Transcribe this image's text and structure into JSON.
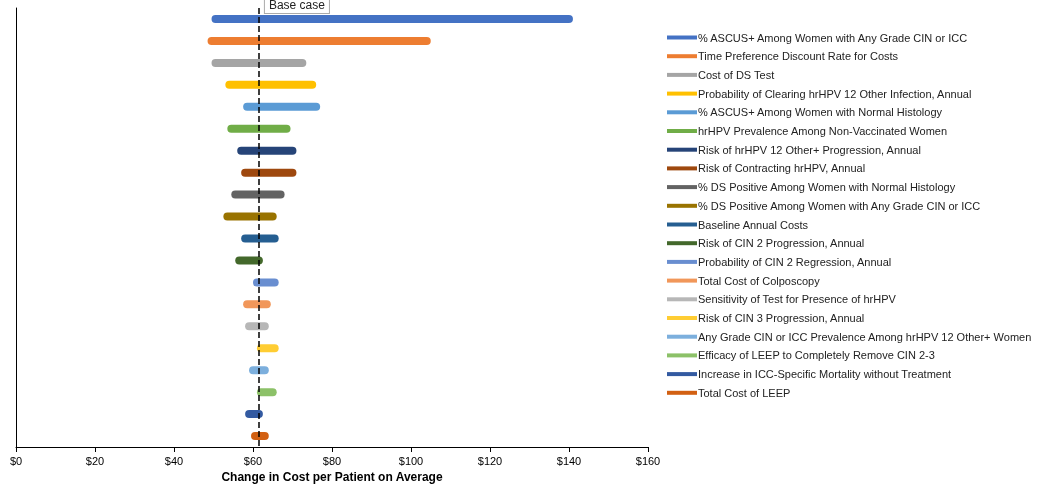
{
  "chart_data": {
    "type": "bar",
    "orientation": "horizontal",
    "xlabel": "Change in Cost per Patient on Average",
    "categories": [
      null,
      null,
      null,
      null,
      null,
      null,
      null,
      null,
      null,
      null,
      null,
      null,
      null,
      null,
      null,
      null,
      null,
      null,
      null,
      null
    ],
    "xlim": [
      0,
      160
    ],
    "xticks": [
      {
        "value": 0,
        "label": "$0"
      },
      {
        "value": 20,
        "label": "$20"
      },
      {
        "value": 40,
        "label": "$40"
      },
      {
        "value": 60,
        "label": "$60"
      },
      {
        "value": 80,
        "label": "$80"
      },
      {
        "value": 100,
        "label": "$100"
      },
      {
        "value": 120,
        "label": "$120"
      },
      {
        "value": 140,
        "label": "$140"
      },
      {
        "value": 160,
        "label": "$160"
      }
    ],
    "tick_labels": "x",
    "grid": false,
    "legend": "right",
    "ref_lines": [
      {
        "axis": "x",
        "value": 61.5,
        "label": "Base case",
        "color": "#000000",
        "line_style": "dashed"
      }
    ],
    "series": [
      {
        "name": "% ASCUS+ Among Women with Any Grade CIN or ICC",
        "color": "#4472c4",
        "base": [
          49.5,
          null,
          null,
          null,
          null,
          null,
          null,
          null,
          null,
          null,
          null,
          null,
          null,
          null,
          null,
          null,
          null,
          null,
          null,
          null
        ],
        "values": [
          91.5,
          null,
          null,
          null,
          null,
          null,
          null,
          null,
          null,
          null,
          null,
          null,
          null,
          null,
          null,
          null,
          null,
          null,
          null,
          null
        ]
      },
      {
        "name": "Time Preference Discount Rate for Costs",
        "color": "#ed7d31",
        "base": [
          null,
          48.5,
          null,
          null,
          null,
          null,
          null,
          null,
          null,
          null,
          null,
          null,
          null,
          null,
          null,
          null,
          null,
          null,
          null,
          null
        ],
        "values": [
          null,
          56.5,
          null,
          null,
          null,
          null,
          null,
          null,
          null,
          null,
          null,
          null,
          null,
          null,
          null,
          null,
          null,
          null,
          null,
          null
        ]
      },
      {
        "name": "Cost of DS Test",
        "color": "#a5a5a5",
        "base": [
          null,
          null,
          49.5,
          null,
          null,
          null,
          null,
          null,
          null,
          null,
          null,
          null,
          null,
          null,
          null,
          null,
          null,
          null,
          null,
          null
        ],
        "values": [
          null,
          null,
          24,
          null,
          null,
          null,
          null,
          null,
          null,
          null,
          null,
          null,
          null,
          null,
          null,
          null,
          null,
          null,
          null,
          null
        ]
      },
      {
        "name": "Probability of Clearing hrHPV 12 Other Infection, Annual",
        "color": "#ffc000",
        "base": [
          null,
          null,
          null,
          53,
          null,
          null,
          null,
          null,
          null,
          null,
          null,
          null,
          null,
          null,
          null,
          null,
          null,
          null,
          null,
          null
        ],
        "values": [
          null,
          null,
          null,
          23,
          null,
          null,
          null,
          null,
          null,
          null,
          null,
          null,
          null,
          null,
          null,
          null,
          null,
          null,
          null,
          null
        ]
      },
      {
        "name": "% ASCUS+ Among Women with Normal Histology",
        "color": "#5b9bd5",
        "base": [
          null,
          null,
          null,
          null,
          57.5,
          null,
          null,
          null,
          null,
          null,
          null,
          null,
          null,
          null,
          null,
          null,
          null,
          null,
          null,
          null
        ],
        "values": [
          null,
          null,
          null,
          null,
          19.5,
          null,
          null,
          null,
          null,
          null,
          null,
          null,
          null,
          null,
          null,
          null,
          null,
          null,
          null,
          null
        ]
      },
      {
        "name": "hrHPV Prevalence Among Non-Vaccinated Women",
        "color": "#70ad47",
        "base": [
          null,
          null,
          null,
          null,
          null,
          53.5,
          null,
          null,
          null,
          null,
          null,
          null,
          null,
          null,
          null,
          null,
          null,
          null,
          null,
          null
        ],
        "values": [
          null,
          null,
          null,
          null,
          null,
          16,
          null,
          null,
          null,
          null,
          null,
          null,
          null,
          null,
          null,
          null,
          null,
          null,
          null,
          null
        ]
      },
      {
        "name": "Risk of hrHPV 12 Other+ Progression, Annual",
        "color": "#264478",
        "base": [
          null,
          null,
          null,
          null,
          null,
          null,
          56,
          null,
          null,
          null,
          null,
          null,
          null,
          null,
          null,
          null,
          null,
          null,
          null,
          null
        ],
        "values": [
          null,
          null,
          null,
          null,
          null,
          null,
          15,
          null,
          null,
          null,
          null,
          null,
          null,
          null,
          null,
          null,
          null,
          null,
          null,
          null
        ]
      },
      {
        "name": "Risk of Contracting hrHPV, Annual",
        "color": "#9e480e",
        "base": [
          null,
          null,
          null,
          null,
          null,
          null,
          null,
          57,
          null,
          null,
          null,
          null,
          null,
          null,
          null,
          null,
          null,
          null,
          null,
          null
        ],
        "values": [
          null,
          null,
          null,
          null,
          null,
          null,
          null,
          14,
          null,
          null,
          null,
          null,
          null,
          null,
          null,
          null,
          null,
          null,
          null,
          null
        ]
      },
      {
        "name": "% DS Positive Among Women with Normal Histology",
        "color": "#636363",
        "base": [
          null,
          null,
          null,
          null,
          null,
          null,
          null,
          null,
          54.5,
          null,
          null,
          null,
          null,
          null,
          null,
          null,
          null,
          null,
          null,
          null
        ],
        "values": [
          null,
          null,
          null,
          null,
          null,
          null,
          null,
          null,
          13.5,
          null,
          null,
          null,
          null,
          null,
          null,
          null,
          null,
          null,
          null,
          null
        ]
      },
      {
        "name": "% DS Positive Among Women with Any Grade CIN or ICC",
        "color": "#997300",
        "base": [
          null,
          null,
          null,
          null,
          null,
          null,
          null,
          null,
          null,
          52.5,
          null,
          null,
          null,
          null,
          null,
          null,
          null,
          null,
          null,
          null
        ],
        "values": [
          null,
          null,
          null,
          null,
          null,
          null,
          null,
          null,
          null,
          13.5,
          null,
          null,
          null,
          null,
          null,
          null,
          null,
          null,
          null,
          null
        ]
      },
      {
        "name": "Baseline Annual Costs",
        "color": "#255e91",
        "base": [
          null,
          null,
          null,
          null,
          null,
          null,
          null,
          null,
          null,
          null,
          57,
          null,
          null,
          null,
          null,
          null,
          null,
          null,
          null,
          null
        ],
        "values": [
          null,
          null,
          null,
          null,
          null,
          null,
          null,
          null,
          null,
          null,
          9.5,
          null,
          null,
          null,
          null,
          null,
          null,
          null,
          null,
          null
        ]
      },
      {
        "name": "Risk of CIN 2 Progression, Annual",
        "color": "#43682b",
        "base": [
          null,
          null,
          null,
          null,
          null,
          null,
          null,
          null,
          null,
          null,
          null,
          55.5,
          null,
          null,
          null,
          null,
          null,
          null,
          null,
          null
        ],
        "values": [
          null,
          null,
          null,
          null,
          null,
          null,
          null,
          null,
          null,
          null,
          null,
          7,
          null,
          null,
          null,
          null,
          null,
          null,
          null,
          null
        ]
      },
      {
        "name": "Probability of CIN 2 Regression, Annual",
        "color": "#698ed0",
        "base": [
          null,
          null,
          null,
          null,
          null,
          null,
          null,
          null,
          null,
          null,
          null,
          null,
          60,
          null,
          null,
          null,
          null,
          null,
          null,
          null
        ],
        "values": [
          null,
          null,
          null,
          null,
          null,
          null,
          null,
          null,
          null,
          null,
          null,
          null,
          6.5,
          null,
          null,
          null,
          null,
          null,
          null,
          null
        ]
      },
      {
        "name": "Total Cost of Colposcopy",
        "color": "#f1975a",
        "base": [
          null,
          null,
          null,
          null,
          null,
          null,
          null,
          null,
          null,
          null,
          null,
          null,
          null,
          57.5,
          null,
          null,
          null,
          null,
          null,
          null
        ],
        "values": [
          null,
          null,
          null,
          null,
          null,
          null,
          null,
          null,
          null,
          null,
          null,
          null,
          null,
          7,
          null,
          null,
          null,
          null,
          null,
          null
        ]
      },
      {
        "name": "Sensitivity of Test for Presence of hrHPV",
        "color": "#b7b7b7",
        "base": [
          null,
          null,
          null,
          null,
          null,
          null,
          null,
          null,
          null,
          null,
          null,
          null,
          null,
          null,
          58,
          null,
          null,
          null,
          null,
          null
        ],
        "values": [
          null,
          null,
          null,
          null,
          null,
          null,
          null,
          null,
          null,
          null,
          null,
          null,
          null,
          null,
          6,
          null,
          null,
          null,
          null,
          null
        ]
      },
      {
        "name": "Risk of CIN 3 Progression, Annual",
        "color": "#ffcd33",
        "base": [
          null,
          null,
          null,
          null,
          null,
          null,
          null,
          null,
          null,
          null,
          null,
          null,
          null,
          null,
          null,
          61,
          null,
          null,
          null,
          null
        ],
        "values": [
          null,
          null,
          null,
          null,
          null,
          null,
          null,
          null,
          null,
          null,
          null,
          null,
          null,
          null,
          null,
          5.5,
          null,
          null,
          null,
          null
        ]
      },
      {
        "name": "Any Grade CIN or ICC Prevalence Among hrHPV 12 Other+ Women",
        "color": "#7cafdd",
        "base": [
          null,
          null,
          null,
          null,
          null,
          null,
          null,
          null,
          null,
          null,
          null,
          null,
          null,
          null,
          null,
          null,
          59,
          null,
          null,
          null
        ],
        "values": [
          null,
          null,
          null,
          null,
          null,
          null,
          null,
          null,
          null,
          null,
          null,
          null,
          null,
          null,
          null,
          null,
          5,
          null,
          null,
          null
        ]
      },
      {
        "name": "Efficacy of LEEP to Completely Remove CIN 2-3",
        "color": "#8cc168",
        "base": [
          null,
          null,
          null,
          null,
          null,
          null,
          null,
          null,
          null,
          null,
          null,
          null,
          null,
          null,
          null,
          null,
          null,
          61,
          null,
          null
        ],
        "values": [
          null,
          null,
          null,
          null,
          null,
          null,
          null,
          null,
          null,
          null,
          null,
          null,
          null,
          null,
          null,
          null,
          null,
          5,
          null,
          null
        ]
      },
      {
        "name": "Increase in ICC-Specific Mortality without Treatment",
        "color": "#335aa1",
        "base": [
          null,
          null,
          null,
          null,
          null,
          null,
          null,
          null,
          null,
          null,
          null,
          null,
          null,
          null,
          null,
          null,
          null,
          null,
          58,
          null
        ],
        "values": [
          null,
          null,
          null,
          null,
          null,
          null,
          null,
          null,
          null,
          null,
          null,
          null,
          null,
          null,
          null,
          null,
          null,
          null,
          4.5,
          null
        ]
      },
      {
        "name": "Total Cost of LEEP",
        "color": "#d26012",
        "base": [
          null,
          null,
          null,
          null,
          null,
          null,
          null,
          null,
          null,
          null,
          null,
          null,
          null,
          null,
          null,
          null,
          null,
          null,
          null,
          59.5
        ],
        "values": [
          null,
          null,
          null,
          null,
          null,
          null,
          null,
          null,
          null,
          null,
          null,
          null,
          null,
          null,
          null,
          null,
          null,
          null,
          null,
          4.5
        ]
      }
    ]
  }
}
